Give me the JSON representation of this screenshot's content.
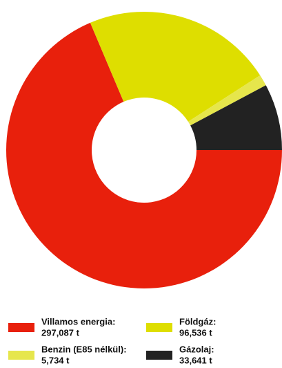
{
  "chart_data": {
    "type": "donut",
    "categories": [
      "Villamos energia:",
      "Földgáz:",
      "Benzin (E85 nélkül):",
      "Gázolaj:"
    ],
    "values": [
      297087,
      96536,
      5734,
      33641
    ],
    "value_labels": [
      "297,087 t",
      "96,536 t",
      "5,734 t",
      "33,641 t"
    ],
    "colors": [
      "#e8200c",
      "#dede00",
      "#e6e64c",
      "#222222"
    ]
  }
}
